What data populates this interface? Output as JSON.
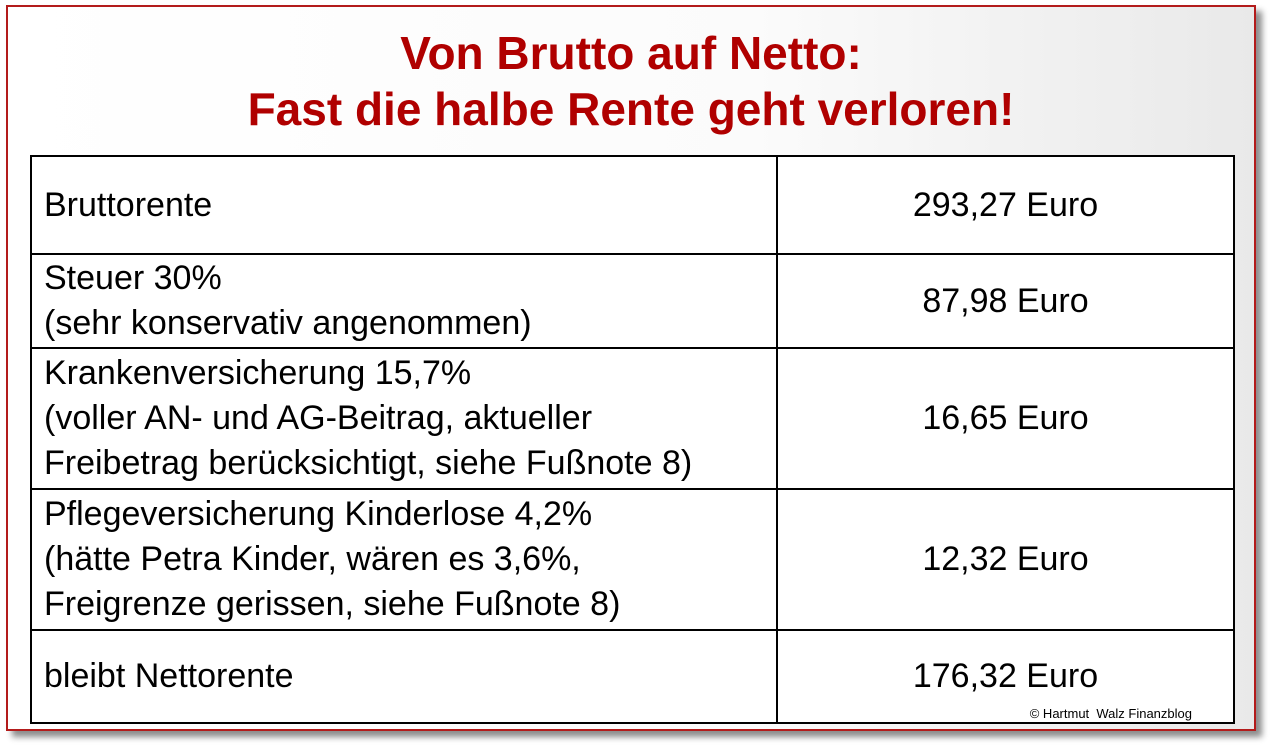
{
  "title": {
    "line1": "Von Brutto auf Netto:",
    "line2": "Fast die halbe Rente geht verloren!"
  },
  "rows": [
    {
      "label_lines": [
        "Bruttorente"
      ],
      "value": "293,27 Euro"
    },
    {
      "label_lines": [
        "Steuer 30%",
        "(sehr konservativ angenommen)"
      ],
      "value": "87,98 Euro"
    },
    {
      "label_lines": [
        "Krankenversicherung 15,7%",
        "(voller AN- und AG-Beitrag, aktueller",
        "Freibetrag berücksichtigt, siehe Fußnote 8)"
      ],
      "value": "16,65 Euro"
    },
    {
      "label_lines": [
        "Pflegeversicherung Kinderlose 4,2%",
        "(hätte Petra Kinder, wären es 3,6%,",
        "Freigrenze gerissen, siehe Fußnote 8)"
      ],
      "value": "12,32 Euro"
    },
    {
      "label_lines": [
        "bleibt Nettorente"
      ],
      "value": "176,32 Euro"
    }
  ],
  "copyright": "© Hartmut  Walz Finanzblog",
  "colors": {
    "title": "#b00000",
    "frame": "#b31b1b",
    "text": "#000000"
  }
}
